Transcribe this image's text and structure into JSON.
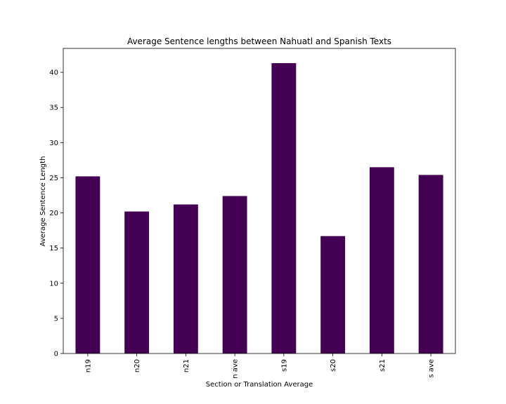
{
  "chart_data": {
    "type": "bar",
    "title": "Average Sentence lengths between Nahuatl and Spanish Texts",
    "xlabel": "Section or Translation Average",
    "ylabel": "Average Sentence Length",
    "categories": [
      "n19",
      "n20",
      "n21",
      "n ave",
      "s19",
      "s20",
      "s21",
      "s ave"
    ],
    "values": [
      25.2,
      20.2,
      21.2,
      22.4,
      41.3,
      16.7,
      26.5,
      25.4
    ],
    "yticks": [
      "0",
      "5",
      "10",
      "15",
      "20",
      "25",
      "30",
      "35",
      "40"
    ],
    "ylim": [
      0,
      43.4
    ],
    "grid": false,
    "bar_color": "#440154"
  }
}
